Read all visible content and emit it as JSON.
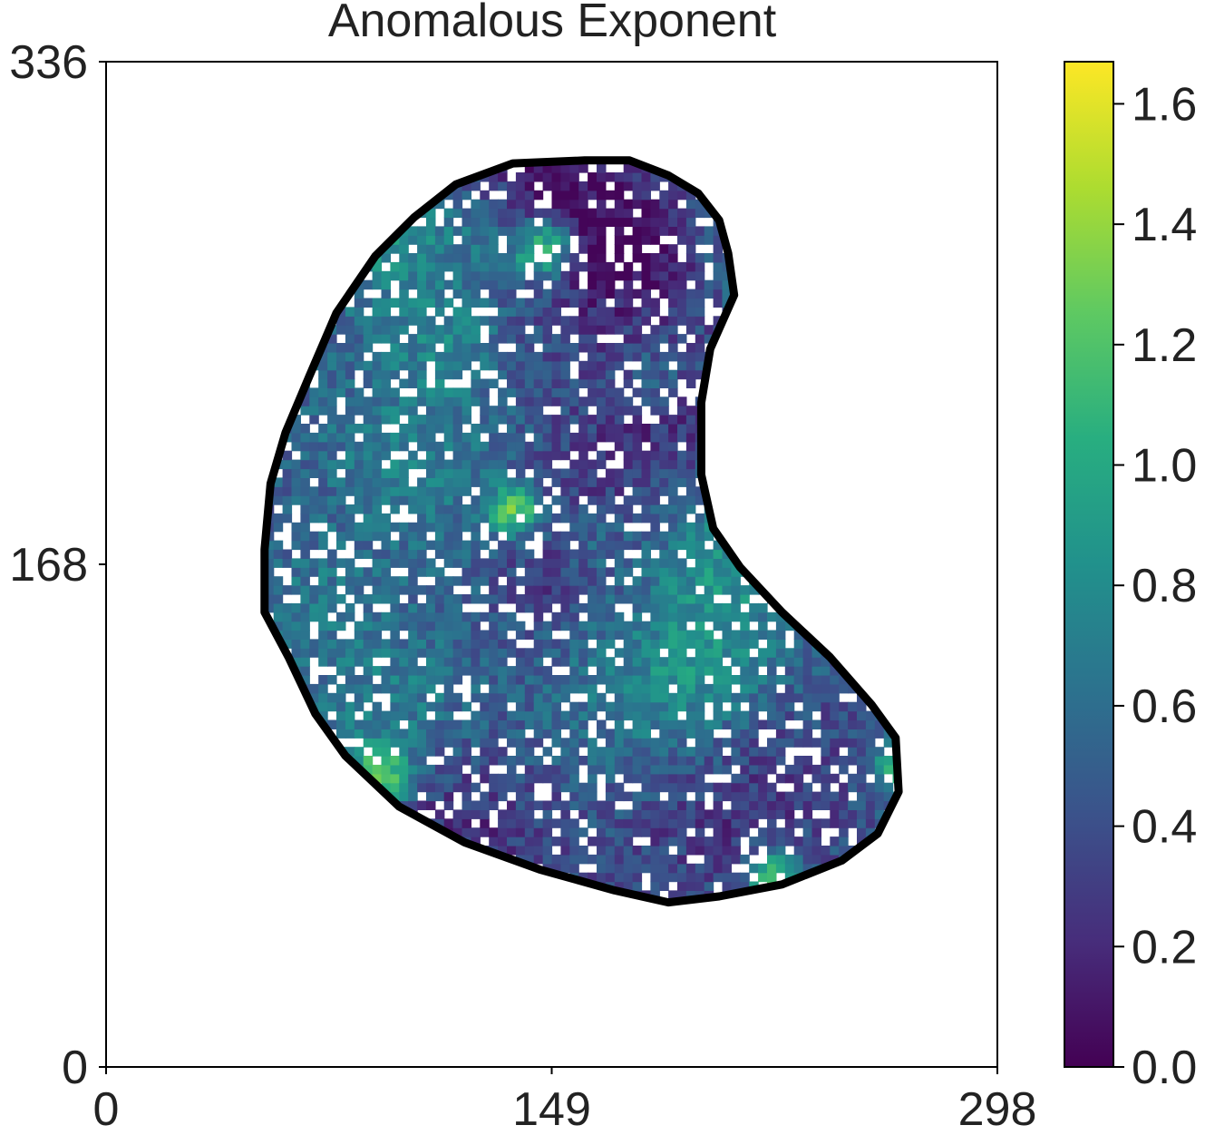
{
  "chart_data": {
    "type": "heatmap",
    "title": "Anomalous Exponent",
    "xlabel": "",
    "ylabel": "",
    "xlim": [
      0,
      298
    ],
    "ylim": [
      0,
      336
    ],
    "xticks": [
      "0",
      "149",
      "298"
    ],
    "yticks": [
      "0",
      "168",
      "336"
    ],
    "grid": false,
    "colormap": "viridis",
    "colorbar": {
      "range": [
        0.0,
        1.67
      ],
      "ticks": [
        "0.0",
        "0.2",
        "0.4",
        "0.6",
        "0.8",
        "1.0",
        "1.2",
        "1.4",
        "1.6"
      ],
      "tick_values": [
        0.0,
        0.2,
        0.4,
        0.6,
        0.8,
        1.0,
        1.2,
        1.4,
        1.6
      ]
    },
    "boundary_color": "#000000",
    "masked_color": "#ffffff",
    "typical_value_range": [
      0.1,
      0.9
    ],
    "hotspot_value_range": [
      1.2,
      1.6
    ],
    "cell_outline": [
      [
        160,
        303
      ],
      [
        175,
        303
      ],
      [
        188,
        298
      ],
      [
        198,
        292
      ],
      [
        205,
        283
      ],
      [
        208,
        272
      ],
      [
        210,
        258
      ],
      [
        202,
        240
      ],
      [
        199,
        222
      ],
      [
        199,
        198
      ],
      [
        203,
        180
      ],
      [
        212,
        167
      ],
      [
        226,
        152
      ],
      [
        242,
        137
      ],
      [
        256,
        121
      ],
      [
        264,
        110
      ],
      [
        265,
        92
      ],
      [
        258,
        78
      ],
      [
        246,
        69
      ],
      [
        226,
        61
      ],
      [
        205,
        57
      ],
      [
        188,
        55
      ],
      [
        170,
        59
      ],
      [
        145,
        66
      ],
      [
        120,
        75
      ],
      [
        98,
        87
      ],
      [
        80,
        104
      ],
      [
        70,
        118
      ],
      [
        61,
        137
      ],
      [
        53,
        152
      ],
      [
        53,
        173
      ],
      [
        55,
        195
      ],
      [
        60,
        212
      ],
      [
        68,
        231
      ],
      [
        77,
        252
      ],
      [
        90,
        271
      ],
      [
        103,
        284
      ],
      [
        117,
        295
      ],
      [
        136,
        302
      ]
    ]
  }
}
